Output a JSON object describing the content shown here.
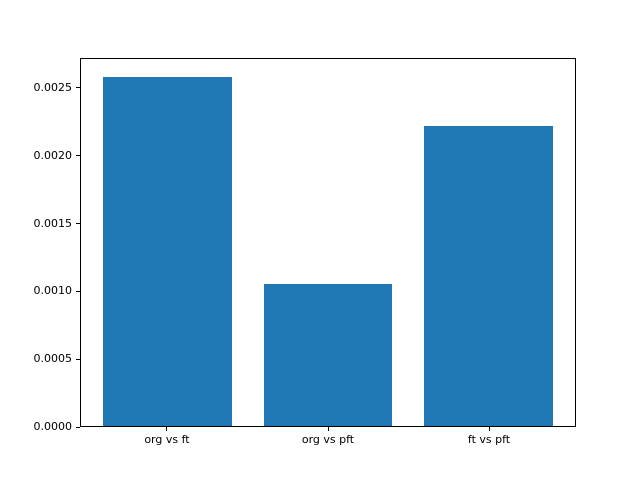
{
  "figure": {
    "background": "#ffffff",
    "text_color": "#000000",
    "frame_color": "#000000"
  },
  "chart_data": {
    "type": "bar",
    "title": "",
    "xlabel": "",
    "ylabel": "",
    "categories": [
      "org vs ft",
      "org vs pft",
      "ft vs pft"
    ],
    "values": [
      0.00259,
      0.00105,
      0.00222
    ],
    "bar_color": "#1f77b4",
    "bar_width_fraction": 0.8,
    "xlim": [
      -0.54,
      2.54
    ],
    "ylim": [
      0,
      0.00272
    ],
    "y_ticks": [
      {
        "value": 0.0,
        "label": "0.0000"
      },
      {
        "value": 0.0005,
        "label": "0.0005"
      },
      {
        "value": 0.001,
        "label": "0.0010"
      },
      {
        "value": 0.0015,
        "label": "0.0015"
      },
      {
        "value": 0.002,
        "label": "0.0020"
      },
      {
        "value": 0.0025,
        "label": "0.0025"
      }
    ],
    "grid": false,
    "legend": "none"
  }
}
